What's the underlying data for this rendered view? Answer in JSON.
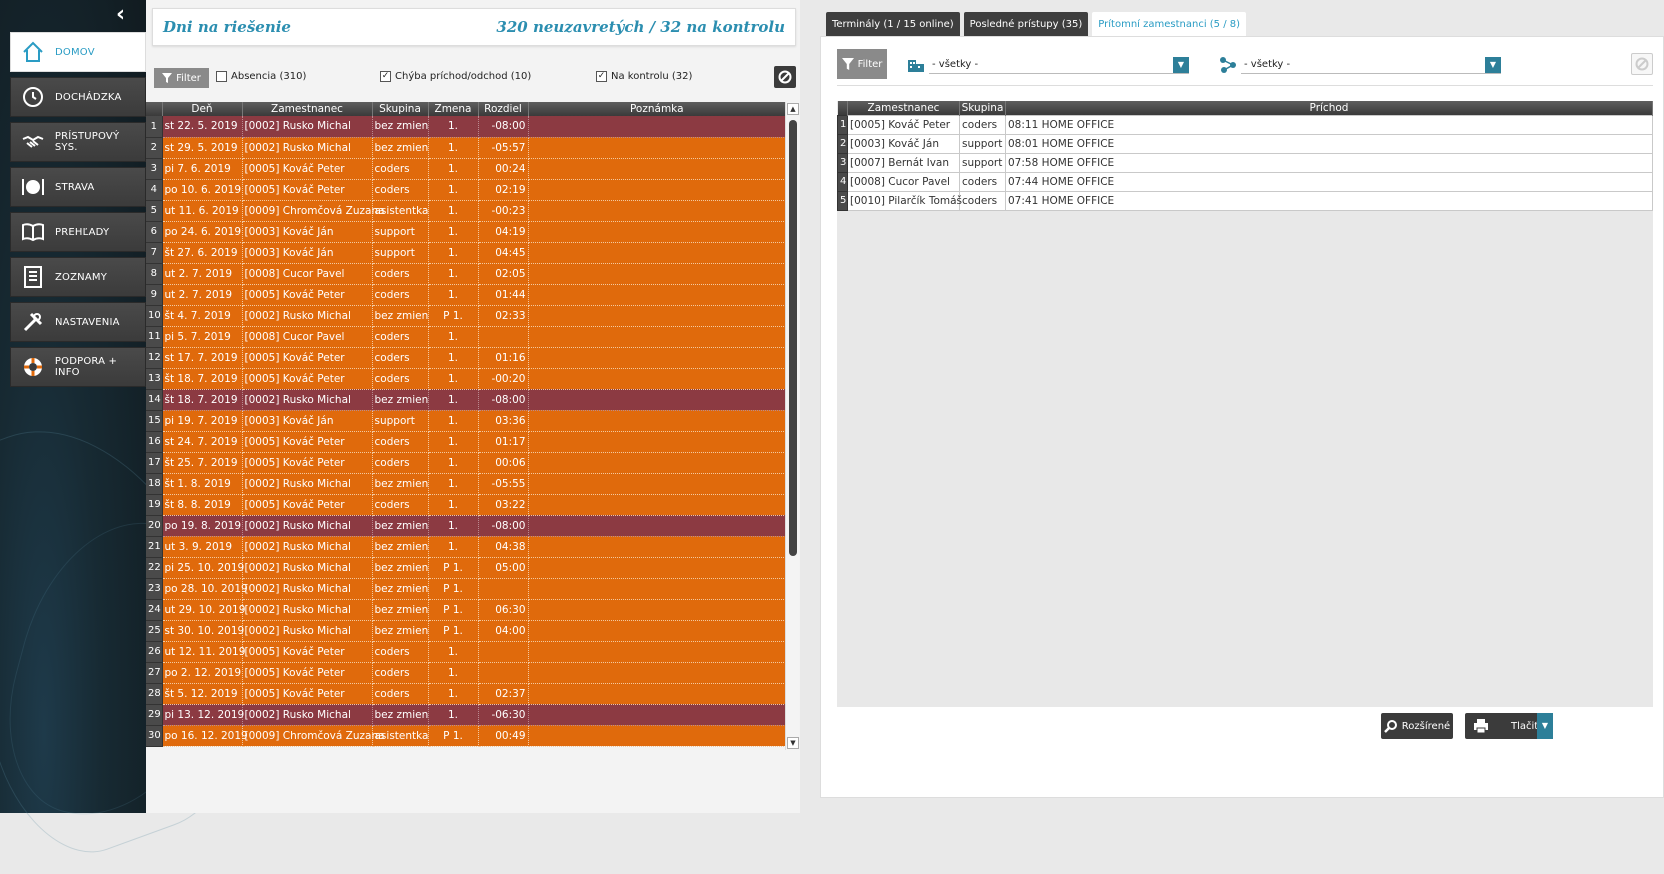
{
  "sidebar": {
    "collapse_icon": "chevron-left-icon",
    "items": [
      {
        "label": "DOMOV",
        "icon": "home-icon"
      },
      {
        "label": "DOCHÁDZKA",
        "icon": "clock-icon"
      },
      {
        "label": "PRÍSTUPOVÝ SYS.",
        "icon": "handshake-icon"
      },
      {
        "label": "STRAVA",
        "icon": "plate-icon"
      },
      {
        "label": "PREHĽADY",
        "icon": "book-icon"
      },
      {
        "label": "ZOZNAMY",
        "icon": "list-icon"
      },
      {
        "label": "NASTAVENIA",
        "icon": "tools-icon"
      },
      {
        "label": "PODPORA + INFO",
        "icon": "lifebuoy-icon"
      }
    ]
  },
  "left": {
    "title": "Dni na riešenie",
    "summary": "320 neuzavretých / 32 na kontrolu",
    "filter_label": "Filter",
    "checkboxes": [
      {
        "label": "Absencia (310)",
        "checked": false
      },
      {
        "label": "Chýba príchod/odchod (10)",
        "checked": true
      },
      {
        "label": "Na kontrolu (32)",
        "checked": true
      }
    ],
    "columns": [
      "Deň",
      "Zamestnanec",
      "Skupina",
      "Zmena",
      "Rozdiel",
      "Poznámka"
    ],
    "rows": [
      {
        "n": "1",
        "day": "st 22. 5. 2019",
        "emp": "[0002] Rusko Michal",
        "grp": "bez zmien",
        "shift": "1.",
        "diff": "-08:00",
        "type": "red"
      },
      {
        "n": "2",
        "day": "st 29. 5. 2019",
        "emp": "[0002] Rusko Michal",
        "grp": "bez zmien",
        "shift": "1.",
        "diff": "-05:57",
        "type": "orange"
      },
      {
        "n": "3",
        "day": "pi 7. 6. 2019",
        "emp": "[0005] Kováč Peter",
        "grp": "coders",
        "shift": "1.",
        "diff": "00:24",
        "type": "orange"
      },
      {
        "n": "4",
        "day": "po 10. 6. 2019",
        "emp": "[0005] Kováč Peter",
        "grp": "coders",
        "shift": "1.",
        "diff": "02:19",
        "type": "orange"
      },
      {
        "n": "5",
        "day": "ut 11. 6. 2019",
        "emp": "[0009] Chromčová Zuzana",
        "grp": "asistentka",
        "shift": "1.",
        "diff": "-00:23",
        "type": "orange"
      },
      {
        "n": "6",
        "day": "po 24. 6. 2019",
        "emp": "[0003] Kováč Ján",
        "grp": "support",
        "shift": "1.",
        "diff": "04:19",
        "type": "orange"
      },
      {
        "n": "7",
        "day": "št 27. 6. 2019",
        "emp": "[0003] Kováč Ján",
        "grp": "support",
        "shift": "1.",
        "diff": "04:45",
        "type": "orange"
      },
      {
        "n": "8",
        "day": "ut 2. 7. 2019",
        "emp": "[0008] Cucor Pavel",
        "grp": "coders",
        "shift": "1.",
        "diff": "02:05",
        "type": "orange"
      },
      {
        "n": "9",
        "day": "ut 2. 7. 2019",
        "emp": "[0005] Kováč Peter",
        "grp": "coders",
        "shift": "1.",
        "diff": "01:44",
        "type": "orange"
      },
      {
        "n": "10",
        "day": "št 4. 7. 2019",
        "emp": "[0002] Rusko Michal",
        "grp": "bez zmien",
        "shift": "P 1.",
        "diff": "02:33",
        "type": "orange"
      },
      {
        "n": "11",
        "day": "pi 5. 7. 2019",
        "emp": "[0008] Cucor Pavel",
        "grp": "coders",
        "shift": "1.",
        "diff": "",
        "type": "orange"
      },
      {
        "n": "12",
        "day": "st 17. 7. 2019",
        "emp": "[0005] Kováč Peter",
        "grp": "coders",
        "shift": "1.",
        "diff": "01:16",
        "type": "orange"
      },
      {
        "n": "13",
        "day": "št 18. 7. 2019",
        "emp": "[0005] Kováč Peter",
        "grp": "coders",
        "shift": "1.",
        "diff": "-00:20",
        "type": "orange"
      },
      {
        "n": "14",
        "day": "št 18. 7. 2019",
        "emp": "[0002] Rusko Michal",
        "grp": "bez zmien",
        "shift": "1.",
        "diff": "-08:00",
        "type": "red"
      },
      {
        "n": "15",
        "day": "pi 19. 7. 2019",
        "emp": "[0003] Kováč Ján",
        "grp": "support",
        "shift": "1.",
        "diff": "03:36",
        "type": "orange"
      },
      {
        "n": "16",
        "day": "st 24. 7. 2019",
        "emp": "[0005] Kováč Peter",
        "grp": "coders",
        "shift": "1.",
        "diff": "01:17",
        "type": "orange"
      },
      {
        "n": "17",
        "day": "št 25. 7. 2019",
        "emp": "[0005] Kováč Peter",
        "grp": "coders",
        "shift": "1.",
        "diff": "00:06",
        "type": "orange"
      },
      {
        "n": "18",
        "day": "št 1. 8. 2019",
        "emp": "[0002] Rusko Michal",
        "grp": "bez zmien",
        "shift": "1.",
        "diff": "-05:55",
        "type": "orange"
      },
      {
        "n": "19",
        "day": "št 8. 8. 2019",
        "emp": "[0005] Kováč Peter",
        "grp": "coders",
        "shift": "1.",
        "diff": "03:22",
        "type": "orange"
      },
      {
        "n": "20",
        "day": "po 19. 8. 2019",
        "emp": "[0002] Rusko Michal",
        "grp": "bez zmien",
        "shift": "1.",
        "diff": "-08:00",
        "type": "red"
      },
      {
        "n": "21",
        "day": "ut 3. 9. 2019",
        "emp": "[0002] Rusko Michal",
        "grp": "bez zmien",
        "shift": "1.",
        "diff": "04:38",
        "type": "orange"
      },
      {
        "n": "22",
        "day": "pi 25. 10. 2019",
        "emp": "[0002] Rusko Michal",
        "grp": "bez zmien",
        "shift": "P 1.",
        "diff": "05:00",
        "type": "orange"
      },
      {
        "n": "23",
        "day": "po 28. 10. 2019",
        "emp": "[0002] Rusko Michal",
        "grp": "bez zmien",
        "shift": "P 1.",
        "diff": "",
        "type": "orange"
      },
      {
        "n": "24",
        "day": "ut 29. 10. 2019",
        "emp": "[0002] Rusko Michal",
        "grp": "bez zmien",
        "shift": "P 1.",
        "diff": "06:30",
        "type": "orange"
      },
      {
        "n": "25",
        "day": "st 30. 10. 2019",
        "emp": "[0002] Rusko Michal",
        "grp": "bez zmien",
        "shift": "P 1.",
        "diff": "04:00",
        "type": "orange"
      },
      {
        "n": "26",
        "day": "ut 12. 11. 2019",
        "emp": "[0005] Kováč Peter",
        "grp": "coders",
        "shift": "1.",
        "diff": "",
        "type": "orange"
      },
      {
        "n": "27",
        "day": "po 2. 12. 2019",
        "emp": "[0005] Kováč Peter",
        "grp": "coders",
        "shift": "1.",
        "diff": "",
        "type": "orange"
      },
      {
        "n": "28",
        "day": "št 5. 12. 2019",
        "emp": "[0005] Kováč Peter",
        "grp": "coders",
        "shift": "1.",
        "diff": "02:37",
        "type": "orange"
      },
      {
        "n": "29",
        "day": "pi 13. 12. 2019",
        "emp": "[0002] Rusko Michal",
        "grp": "bez zmien",
        "shift": "1.",
        "diff": "-06:30",
        "type": "red"
      },
      {
        "n": "30",
        "day": "po 16. 12. 2019",
        "emp": "[0009] Chromčová Zuzana",
        "grp": "asistentka",
        "shift": "P 1.",
        "diff": "00:49",
        "type": "orange"
      }
    ]
  },
  "right": {
    "tabs": [
      {
        "label": "Terminály (1 / 15 online)",
        "active": false
      },
      {
        "label": "Posledné prístupy (35)",
        "active": false
      },
      {
        "label": "Prítomní zamestnanci (5 / 8)",
        "active": true
      }
    ],
    "filter_label": "Filter",
    "select1": "- všetky -",
    "select2": "- všetky -",
    "columns": [
      "Zamestnanec",
      "Skupina",
      "Príchod"
    ],
    "rows": [
      {
        "n": "1",
        "emp": "[0005] Kováč Peter",
        "grp": "coders",
        "arr": "08:11 HOME OFFICE"
      },
      {
        "n": "2",
        "emp": "[0003] Kováč Ján",
        "grp": "support",
        "arr": "08:01 HOME OFFICE"
      },
      {
        "n": "3",
        "emp": "[0007] Bernát Ivan",
        "grp": "support",
        "arr": "07:58 HOME OFFICE"
      },
      {
        "n": "4",
        "emp": "[0008] Cucor Pavel",
        "grp": "coders",
        "arr": "07:44 HOME OFFICE"
      },
      {
        "n": "5",
        "emp": "[0010] Pilarčík Tomáš",
        "grp": "coders",
        "arr": "07:41 HOME OFFICE"
      }
    ],
    "btn_extended": "Rozšírené",
    "btn_print": "Tlačiť"
  },
  "colors": {
    "orange_row": "#e06a0c",
    "red_row": "#8c3a42",
    "accent": "#2a9cc4",
    "dark": "#3b3b3b"
  }
}
